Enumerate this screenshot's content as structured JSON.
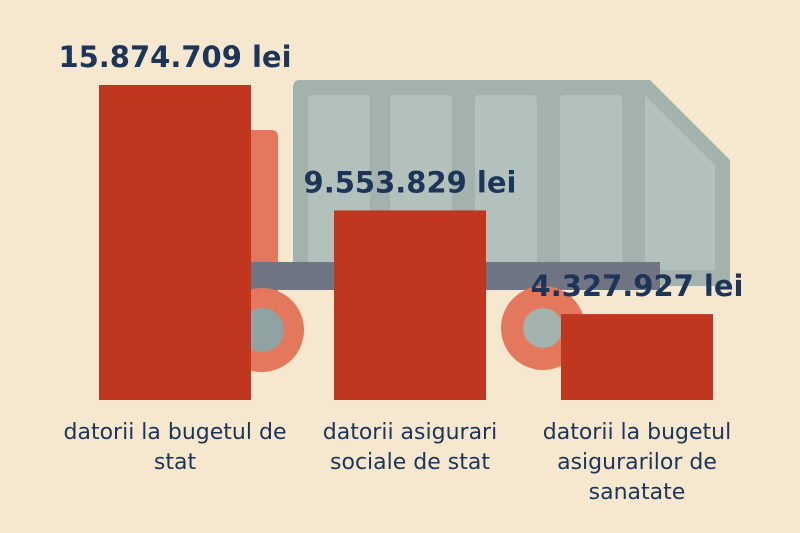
{
  "chart_data": {
    "type": "bar",
    "categories": [
      "datorii la bugetul de stat",
      "datorii asigurari sociale de stat",
      "datorii la bugetul asigurarilor de sanatate"
    ],
    "values": [
      15874709,
      9553829,
      4327927
    ],
    "value_labels": [
      "15.874.709 lei",
      "9.553.829 lei",
      "4.327.927 lei"
    ],
    "color": "#c1361f"
  }
}
